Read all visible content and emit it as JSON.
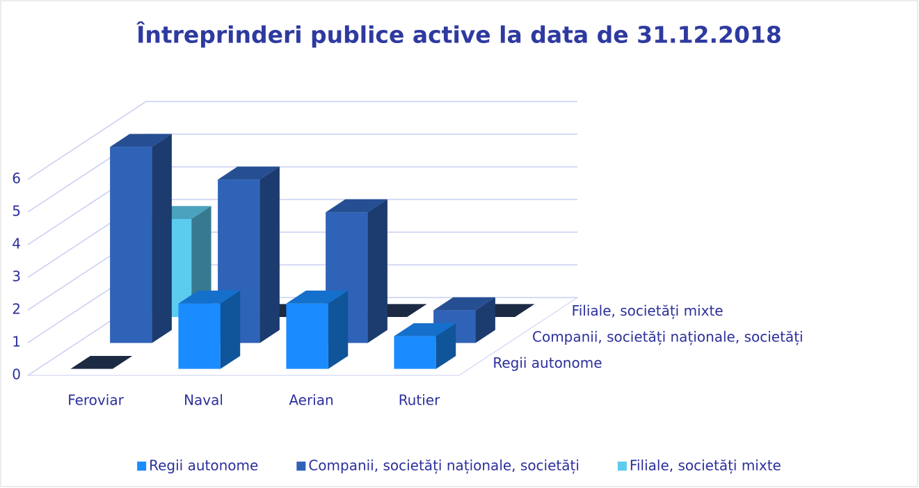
{
  "chart_data": {
    "type": "bar3d",
    "title": "Întreprinderi publice active la data de 31.12.2018",
    "categories": [
      "Feroviar",
      "Naval",
      "Aerian",
      "Rutier"
    ],
    "series": [
      {
        "name": "Regii autonome",
        "color": "#1a8cff",
        "values": [
          0,
          2,
          2,
          1
        ]
      },
      {
        "name": "Companii, societăți naționale, societăți",
        "color": "#2f63b8",
        "values": [
          6,
          5,
          4,
          1
        ]
      },
      {
        "name": "Filiale, societăți mixte",
        "color": "#5ccbee",
        "values": [
          3,
          0,
          0,
          0
        ]
      }
    ],
    "ylim": [
      0,
      6
    ],
    "yticks": [
      0,
      1,
      2,
      3,
      4,
      5,
      6
    ],
    "grid": true,
    "legend": "bottom"
  }
}
